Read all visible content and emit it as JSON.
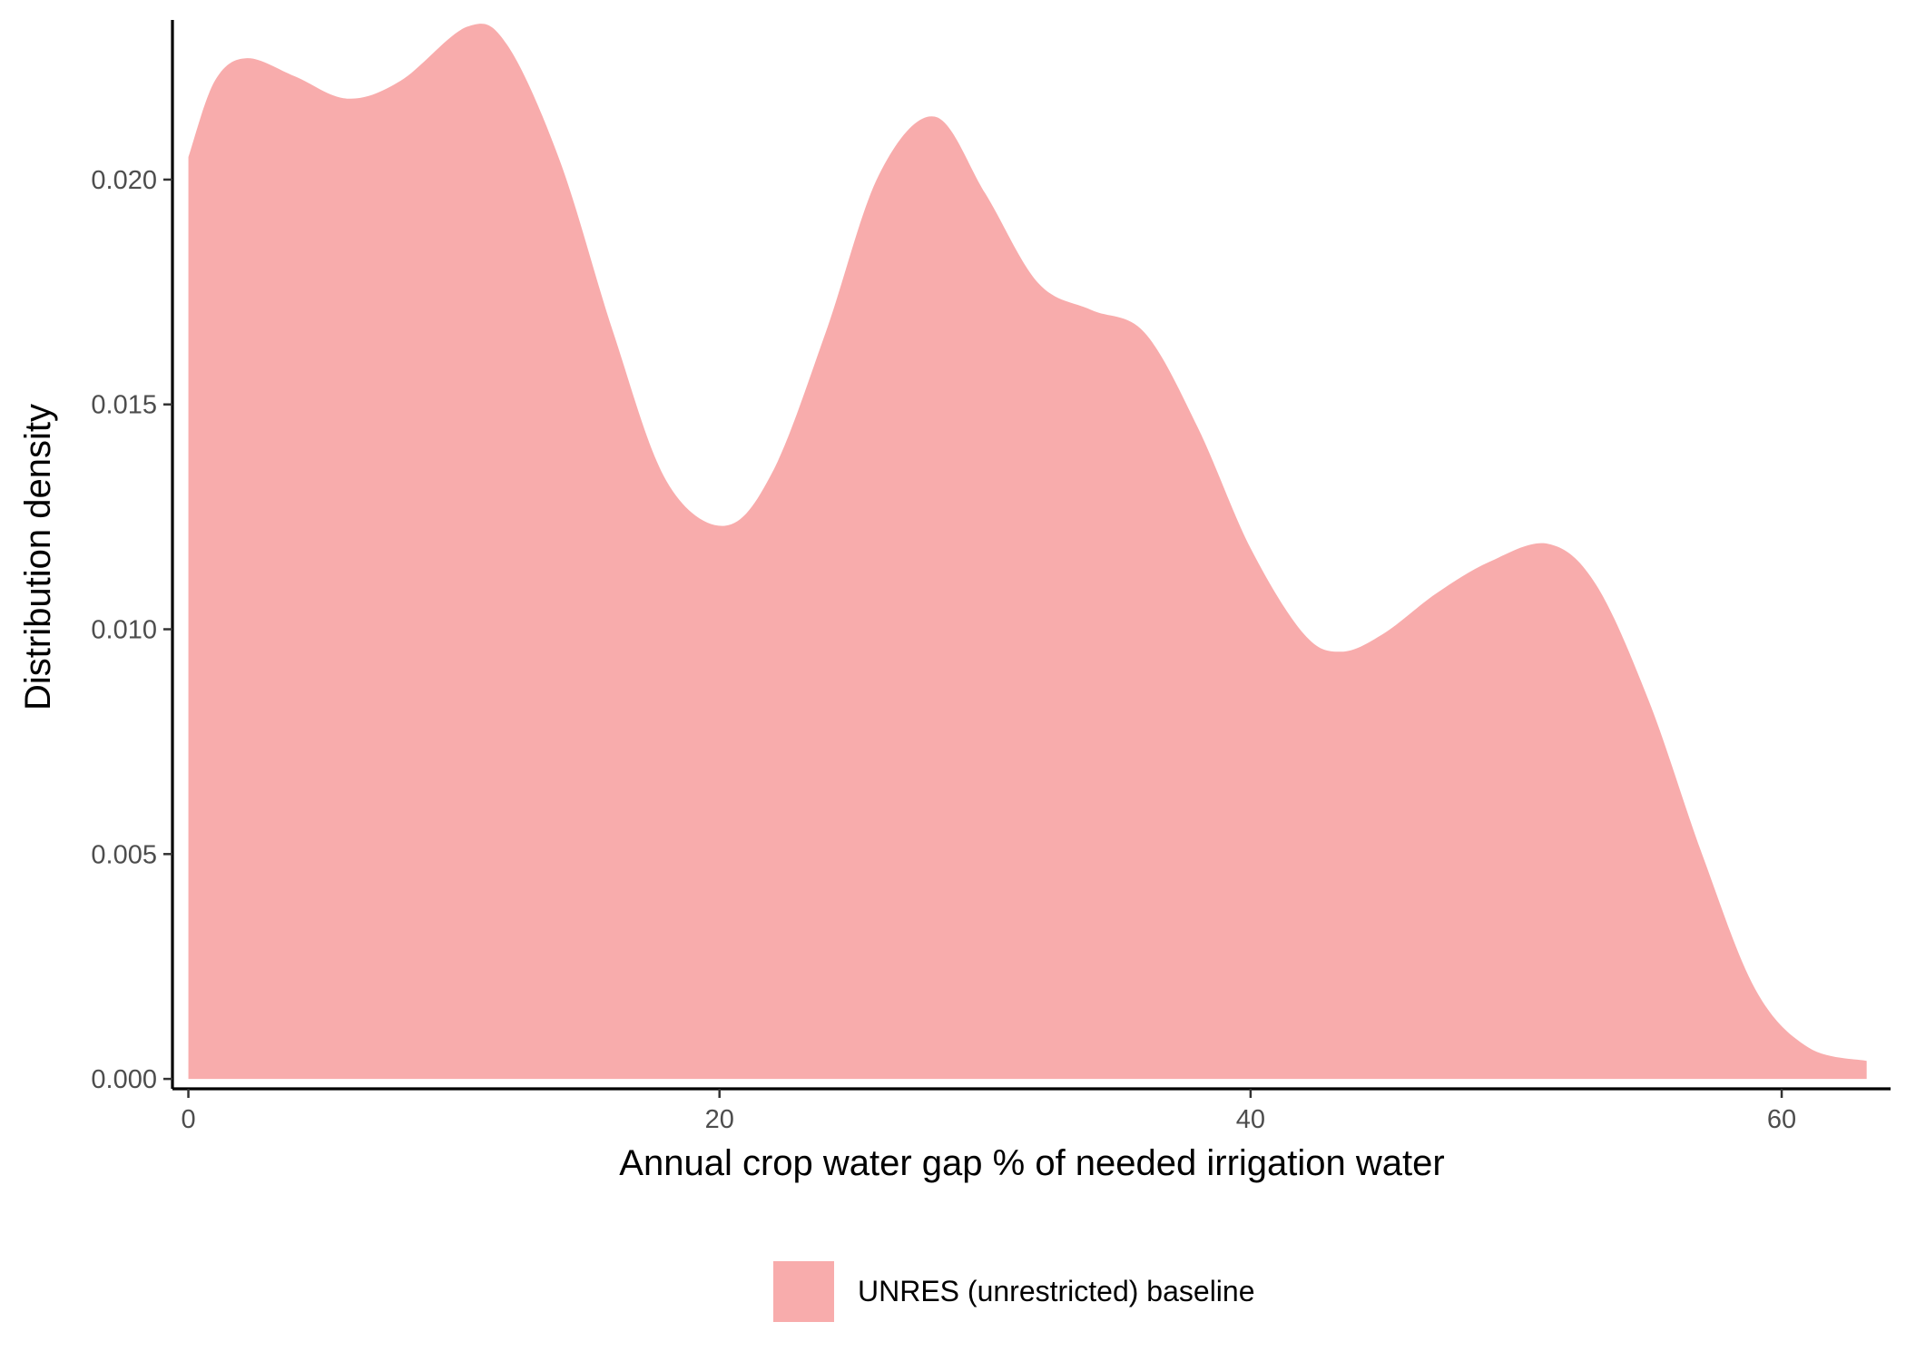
{
  "chart_data": {
    "type": "area",
    "title": "",
    "xlabel": "Annual crop water gap % of needed irrigation water",
    "ylabel": "Distribution density",
    "xlim": [
      -0.6,
      64.1
    ],
    "ylim": [
      -0.00022,
      0.02355
    ],
    "x_ticks": [
      0,
      20,
      40,
      60
    ],
    "x_tick_labels": [
      "0",
      "20",
      "40",
      "60"
    ],
    "y_ticks": [
      0,
      0.005,
      0.01,
      0.015,
      0.02
    ],
    "y_tick_labels": [
      "0.000",
      "0.005",
      "0.010",
      "0.015",
      "0.020"
    ],
    "grid": false,
    "legend_position": "bottom",
    "series": [
      {
        "name": "UNRES (unrestricted) baseline",
        "color": "#F8ACAC",
        "x": [
          0,
          1,
          2.2,
          4,
          6,
          8,
          10.5,
          12,
          14,
          16,
          18,
          20.2,
          22,
          24,
          26,
          28.1,
          30,
          32,
          34,
          36,
          38,
          40,
          42,
          43.4,
          45,
          47,
          49,
          51.2,
          53,
          55,
          57,
          59,
          61,
          63.2
        ],
        "y": [
          0.0205,
          0.0222,
          0.0227,
          0.0223,
          0.0218,
          0.0222,
          0.0234,
          0.023,
          0.0204,
          0.0166,
          0.0133,
          0.0123,
          0.0135,
          0.0166,
          0.0201,
          0.0214,
          0.0197,
          0.0177,
          0.0171,
          0.0166,
          0.0145,
          0.0118,
          0.0099,
          0.0095,
          0.0099,
          0.0108,
          0.0115,
          0.0119,
          0.011,
          0.0084,
          0.005,
          0.002,
          0.0007,
          0.0004
        ]
      }
    ]
  }
}
